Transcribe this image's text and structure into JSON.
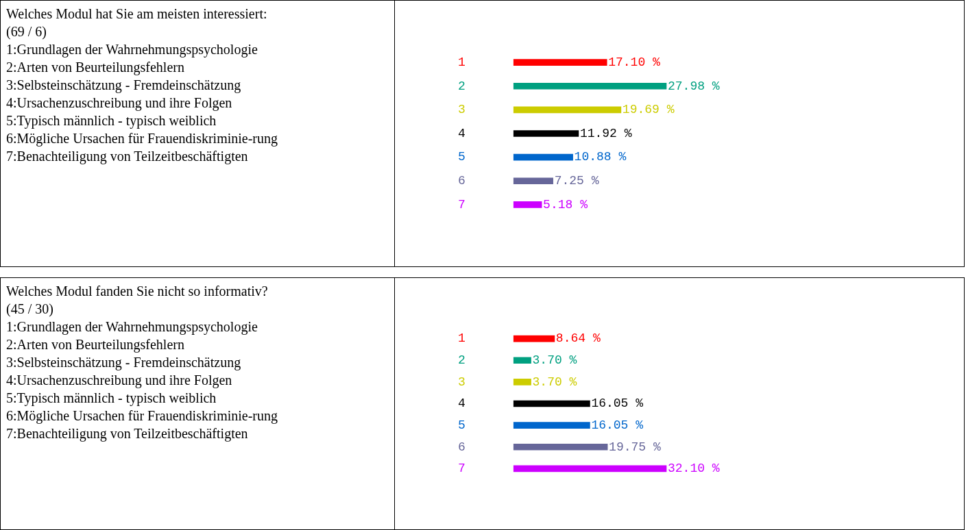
{
  "chart_data": [
    {
      "type": "other",
      "title": "Welches Modul hat Sie am meisten interessiert:",
      "subtitle": "(69 / 6)",
      "annotations": [
        "1:Grundlagen der Wahrnehmungspsychologie",
        "2:Arten von Beurteilungsfehlern",
        "3:Selbsteinschätzung - Fremdeinschätzung",
        "4:Ursachenzuschreibung und ihre Folgen",
        "5:Typisch männlich - typisch weiblich",
        "6:Mögliche Ursachen für Frauendiskriminie-rung",
        "7:Benachteiligung von Teilzeitbeschäftigten"
      ]
    },
    {
      "type": "bar",
      "orientation": "horizontal",
      "categories": [
        "1",
        "2",
        "3",
        "4",
        "5",
        "6",
        "7"
      ],
      "values": [
        17.1,
        27.98,
        19.69,
        11.92,
        10.88,
        7.25,
        5.18
      ],
      "value_labels": [
        "17.10 %",
        "27.98 %",
        "19.69 %",
        "11.92 %",
        "10.88 %",
        "7.25 %",
        "5.18 %"
      ],
      "colors": [
        "#ff0000",
        "#00a080",
        "#cccc00",
        "#000000",
        "#0066cc",
        "#666699",
        "#cc00ff"
      ]
    },
    {
      "type": "other",
      "title": "Welches Modul fanden Sie nicht so informativ?",
      "subtitle": "(45 / 30)",
      "annotations": [
        "1:Grundlagen der Wahrnehmungspsychologie",
        "2:Arten von Beurteilungsfehlern",
        "3:Selbsteinschätzung - Fremdeinschätzung",
        "4:Ursachenzuschreibung und ihre Folgen",
        "5:Typisch männlich - typisch weiblich",
        "6:Mögliche Ursachen für Frauendiskriminie-rung",
        "7:Benachteiligung von Teilzeitbeschäftigten"
      ]
    },
    {
      "type": "bar",
      "orientation": "horizontal",
      "categories": [
        "1",
        "2",
        "3",
        "4",
        "5",
        "6",
        "7"
      ],
      "values": [
        8.64,
        3.7,
        3.7,
        16.05,
        16.05,
        19.75,
        32.1
      ],
      "value_labels": [
        "8.64 %",
        "3.70 %",
        "3.70 %",
        "16.05 %",
        "16.05 %",
        "19.75 %",
        "32.10 %"
      ],
      "colors": [
        "#ff0000",
        "#00a080",
        "#cccc00",
        "#000000",
        "#0066cc",
        "#666699",
        "#cc00ff"
      ]
    }
  ]
}
